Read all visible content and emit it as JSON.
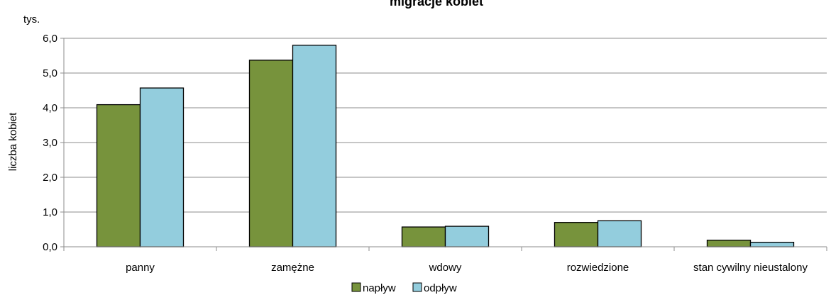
{
  "chart_data": {
    "type": "bar",
    "title": "migracje kobiet",
    "unit_label": "tys.",
    "ylabel": "liczba kobiet",
    "xlabel": "",
    "ylim": [
      0,
      6
    ],
    "ytick_step": 1,
    "ytick_labels": [
      "0,0",
      "1,0",
      "2,0",
      "3,0",
      "4,0",
      "5,0",
      "6,0"
    ],
    "grid": true,
    "legend_position": "bottom",
    "categories": [
      "panny",
      "zamężne",
      "wdowy",
      "rozwiedzione",
      "stan cywilny nieustalony"
    ],
    "series": [
      {
        "name": "napływ",
        "color": "#77933c",
        "values": [
          4.09,
          5.37,
          0.57,
          0.7,
          0.19
        ]
      },
      {
        "name": "odpływ",
        "color": "#93cddd",
        "values": [
          4.57,
          5.8,
          0.59,
          0.75,
          0.13
        ]
      }
    ]
  }
}
